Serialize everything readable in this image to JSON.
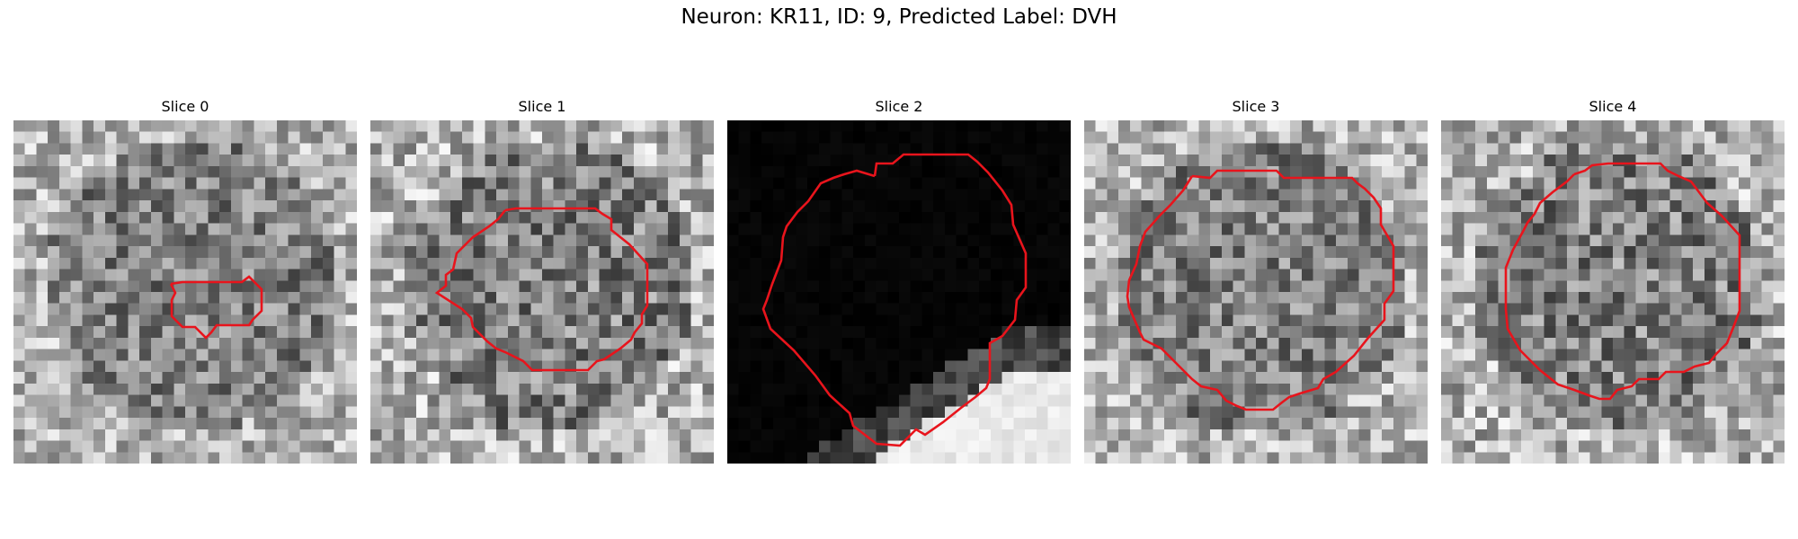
{
  "figure": {
    "title": "Neuron: KR11, ID: 9, Predicted Label: DVH"
  },
  "colors": {
    "contour": "#e8141c",
    "background": "#ffffff"
  },
  "panels": [
    {
      "title": "Slice 0",
      "seed": 11,
      "style": "noisy",
      "base": 0.55,
      "spread": 0.5
    },
    {
      "title": "Slice 1",
      "seed": 23,
      "style": "noisy",
      "base": 0.55,
      "spread": 0.55
    },
    {
      "title": "Slice 2",
      "seed": 37,
      "style": "dark-bright",
      "base": 0.02,
      "spread": 0.05
    },
    {
      "title": "Slice 3",
      "seed": 41,
      "style": "noisy",
      "base": 0.55,
      "spread": 0.5
    },
    {
      "title": "Slice 4",
      "seed": 53,
      "style": "noisy",
      "base": 0.55,
      "spread": 0.55
    }
  ]
}
